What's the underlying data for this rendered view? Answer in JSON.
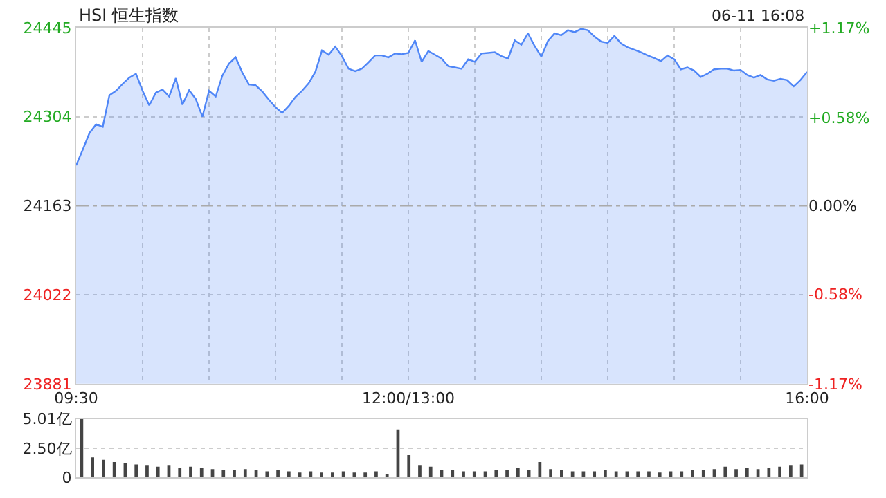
{
  "chart_data": [
    {
      "type": "area",
      "title": "HSI 恒生指数",
      "annotations": [
        "06-11 16:08"
      ],
      "categories": [
        "09:30",
        null,
        null,
        null,
        null,
        null,
        null,
        null,
        null,
        null,
        null,
        null,
        null,
        null,
        null,
        null,
        null,
        null,
        null,
        null,
        null,
        null,
        null,
        null,
        null,
        null,
        null,
        null,
        null,
        null,
        null,
        null,
        null,
        null,
        null,
        null,
        null,
        null,
        null,
        null,
        null,
        null,
        null,
        null,
        null,
        null,
        null,
        null,
        null,
        null,
        "12:00/13:00",
        null,
        null,
        null,
        null,
        null,
        null,
        null,
        null,
        null,
        null,
        null,
        null,
        null,
        null,
        null,
        null,
        null,
        null,
        null,
        null,
        null,
        null,
        null,
        null,
        null,
        null,
        null,
        null,
        null,
        null,
        null,
        null,
        null,
        null,
        null,
        null,
        null,
        null,
        null,
        null,
        null,
        null,
        null,
        null,
        null,
        null,
        null,
        null,
        null,
        null,
        null,
        null,
        null,
        null,
        null,
        null,
        null,
        null,
        null,
        "16:00"
      ],
      "series": [
        {
          "color": "#4f86f7",
          "values": [
            24227,
            24252,
            24278,
            24292,
            24288,
            24338,
            24345,
            24356,
            24366,
            24372,
            24345,
            24322,
            24342,
            24347,
            24336,
            24365,
            24323,
            24346,
            24332,
            24304,
            24345,
            24336,
            24369,
            24388,
            24398,
            24374,
            24355,
            24354,
            24344,
            24331,
            24319,
            24310,
            24321,
            24335,
            24345,
            24357,
            24375,
            24409,
            24402,
            24415,
            24400,
            24380,
            24376,
            24380,
            24390,
            24401,
            24401,
            24398,
            24404,
            24403,
            24405,
            24425,
            24391,
            24408,
            24402,
            24396,
            24384,
            24382,
            24380,
            24395,
            24391,
            24404,
            24405,
            24406,
            24400,
            24396,
            24425,
            24418,
            24436,
            24416,
            24399,
            24424,
            24436,
            24433,
            24441,
            24438,
            24443,
            24441,
            24431,
            24423,
            24421,
            24432,
            24420,
            24414,
            24410,
            24406,
            24401,
            24397,
            24392,
            24401,
            24395,
            24379,
            24382,
            24377,
            24367,
            24372,
            24379,
            24380,
            24380,
            24377,
            24378,
            24370,
            24366,
            24370,
            24363,
            24361,
            24364,
            24362,
            24352,
            24362,
            24375
          ]
        }
      ],
      "ylim": [
        23881,
        24445
      ],
      "yticks": [
        23881,
        24022,
        24163,
        24304,
        24445
      ],
      "y2lim": [
        -1.17,
        1.17
      ],
      "y2ticks": [
        {
          "value": -1.17,
          "label": "-1.17%"
        },
        {
          "value": -0.58,
          "label": "-0.58%"
        },
        {
          "value": 0,
          "label": "0.00%"
        },
        {
          "value": 0.58,
          "label": "+0.58%"
        },
        {
          "value": 1.17,
          "label": "+1.17%"
        }
      ],
      "ref_lines": [
        {
          "axis": "y",
          "value": 24163,
          "line_style": "dashed",
          "color": "#aaaaaa"
        }
      ],
      "grid": true,
      "marker": "none"
    },
    {
      "type": "bar",
      "color": "#444444",
      "categories": [
        null,
        null,
        null,
        null,
        null,
        null,
        null,
        null,
        null,
        null,
        null,
        null,
        null,
        null,
        null,
        null,
        null,
        null,
        null,
        null,
        null,
        null,
        null,
        null,
        null,
        null,
        null,
        null,
        null,
        null,
        null,
        null,
        null,
        null,
        null,
        null,
        null,
        null,
        null,
        null,
        null,
        null,
        null,
        null,
        null,
        null,
        null,
        null,
        null,
        null,
        null,
        null,
        null,
        null,
        null,
        null,
        null,
        null,
        null,
        null,
        null,
        null,
        null,
        null,
        null,
        null,
        null
      ],
      "values": [
        5.0,
        1.7,
        1.5,
        1.3,
        1.2,
        1.1,
        1.0,
        0.9,
        1.0,
        0.8,
        0.9,
        0.8,
        0.7,
        0.6,
        0.6,
        0.7,
        0.6,
        0.5,
        0.6,
        0.5,
        0.4,
        0.5,
        0.4,
        0.4,
        0.5,
        0.4,
        0.4,
        0.5,
        0.3,
        4.1,
        1.9,
        1.0,
        0.9,
        0.6,
        0.6,
        0.5,
        0.5,
        0.5,
        0.6,
        0.6,
        0.8,
        0.6,
        1.3,
        0.7,
        0.6,
        0.5,
        0.5,
        0.5,
        0.6,
        0.5,
        0.5,
        0.5,
        0.5,
        0.4,
        0.5,
        0.5,
        0.6,
        0.6,
        0.7,
        0.9,
        0.7,
        0.8,
        0.7,
        0.8,
        0.9,
        1.0,
        1.1
      ],
      "ylim": [
        0,
        5.01
      ],
      "yticks": [
        0,
        {
          "value": 2.5,
          "label": "2.50亿"
        },
        {
          "value": 5.01,
          "label": "5.01亿"
        }
      ],
      "grid": "y",
      "tick_labels": "y"
    }
  ]
}
